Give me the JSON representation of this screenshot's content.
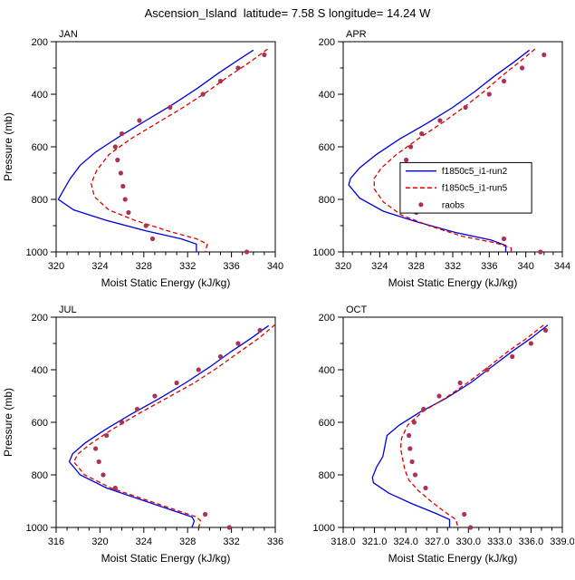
{
  "title": "Ascension_Island  latitude= 7.58 S longitude= 14.24 W",
  "colors": {
    "run2": "#0000dd",
    "run5": "#dd0000",
    "raobs": "#aa3355",
    "axis": "#000000"
  },
  "legend": {
    "entries": [
      {
        "label": "f1850c5_i1-run2",
        "type": "line",
        "color": "#0000dd",
        "dash": "none"
      },
      {
        "label": "f1850c5_i1-run5",
        "type": "line",
        "color": "#dd0000",
        "dash": "5,3"
      },
      {
        "label": "raobs",
        "type": "scatter",
        "color": "#aa3355"
      }
    ]
  },
  "chart_data": [
    {
      "type": "line",
      "title": "JAN",
      "xlabel": "Moist Static Energy (kJ/kg)",
      "ylabel": "Pressure (mb)",
      "xlim": [
        320,
        340
      ],
      "xtick_values": [
        320,
        324,
        328,
        332,
        336,
        340
      ],
      "xtick_labels": [
        "320",
        "324",
        "328",
        "332",
        "336",
        "340"
      ],
      "xminor_step": 1,
      "ylim": [
        200,
        1000
      ],
      "ytick_values": [
        200,
        400,
        600,
        800,
        1000
      ],
      "ytick_labels": [
        "200",
        "400",
        "600",
        "800",
        "1000"
      ],
      "yminor_step": 100,
      "show_legend": false,
      "series": [
        {
          "name": "f1850c5_i1-run2",
          "type": "line",
          "color": "#0000dd",
          "dash": "none",
          "points": [
            [
              338.0,
              232
            ],
            [
              336.6,
              270
            ],
            [
              334.8,
              320
            ],
            [
              332.8,
              380
            ],
            [
              330.6,
              440
            ],
            [
              328.2,
              500
            ],
            [
              325.8,
              560
            ],
            [
              323.6,
              620
            ],
            [
              322.2,
              670
            ],
            [
              321.3,
              720
            ],
            [
              320.6,
              770
            ],
            [
              320.2,
              800
            ],
            [
              321.6,
              840
            ],
            [
              324.6,
              880
            ],
            [
              328.2,
              920
            ],
            [
              331.4,
              950
            ],
            [
              332.8,
              970
            ],
            [
              332.8,
              1000
            ]
          ]
        },
        {
          "name": "f1850c5_i1-run5",
          "type": "line",
          "color": "#dd0000",
          "dash": "5,3",
          "points": [
            [
              339.3,
              228
            ],
            [
              337.6,
              280
            ],
            [
              335.8,
              330
            ],
            [
              333.8,
              390
            ],
            [
              331.6,
              450
            ],
            [
              329.2,
              510
            ],
            [
              326.8,
              570
            ],
            [
              324.8,
              630
            ],
            [
              323.7,
              690
            ],
            [
              323.2,
              740
            ],
            [
              323.5,
              790
            ],
            [
              324.8,
              840
            ],
            [
              327.2,
              880
            ],
            [
              330.2,
              920
            ],
            [
              332.8,
              950
            ],
            [
              333.8,
              970
            ],
            [
              333.6,
              1000
            ]
          ]
        },
        {
          "name": "raobs",
          "type": "scatter",
          "color": "#aa3355",
          "points": [
            [
              339.0,
              250
            ],
            [
              336.6,
              300
            ],
            [
              335.0,
              350
            ],
            [
              333.4,
              400
            ],
            [
              330.4,
              450
            ],
            [
              327.6,
              500
            ],
            [
              326.0,
              550
            ],
            [
              325.4,
              600
            ],
            [
              325.6,
              650
            ],
            [
              325.9,
              700
            ],
            [
              326.1,
              750
            ],
            [
              326.3,
              800
            ],
            [
              326.6,
              850
            ],
            [
              328.2,
              900
            ],
            [
              328.8,
              950
            ],
            [
              337.4,
              1000
            ]
          ]
        }
      ]
    },
    {
      "type": "line",
      "title": "APR",
      "xlabel": "Moist Static Energy (kJ/kg)",
      "ylabel": "",
      "xlim": [
        320,
        344
      ],
      "xtick_values": [
        320,
        324,
        328,
        332,
        336,
        340,
        344
      ],
      "xtick_labels": [
        "320",
        "324",
        "328",
        "332",
        "336",
        "340",
        "344"
      ],
      "xminor_step": 1,
      "ylim": [
        200,
        1000
      ],
      "ytick_values": [
        200,
        400,
        600,
        800,
        1000
      ],
      "ytick_labels": [
        "200",
        "400",
        "600",
        "800",
        "1000"
      ],
      "yminor_step": 100,
      "show_legend": true,
      "series": [
        {
          "name": "f1850c5_i1-run2",
          "type": "line",
          "color": "#0000dd",
          "dash": "none",
          "points": [
            [
              340.4,
              232
            ],
            [
              338.6,
              280
            ],
            [
              336.6,
              330
            ],
            [
              334.4,
              390
            ],
            [
              332.0,
              450
            ],
            [
              329.2,
              510
            ],
            [
              326.2,
              570
            ],
            [
              323.6,
              630
            ],
            [
              321.8,
              680
            ],
            [
              320.8,
              720
            ],
            [
              320.6,
              745
            ],
            [
              321.8,
              795
            ],
            [
              324.4,
              845
            ],
            [
              328.0,
              885
            ],
            [
              332.2,
              925
            ],
            [
              336.2,
              955
            ],
            [
              337.8,
              975
            ],
            [
              337.8,
              1000
            ]
          ]
        },
        {
          "name": "f1850c5_i1-run5",
          "type": "line",
          "color": "#dd0000",
          "dash": "5,3",
          "points": [
            [
              341.0,
              228
            ],
            [
              339.2,
              280
            ],
            [
              337.4,
              330
            ],
            [
              335.4,
              390
            ],
            [
              333.2,
              450
            ],
            [
              330.8,
              510
            ],
            [
              328.2,
              570
            ],
            [
              325.8,
              630
            ],
            [
              324.2,
              680
            ],
            [
              323.4,
              720
            ],
            [
              323.4,
              760
            ],
            [
              324.4,
              810
            ],
            [
              326.4,
              860
            ],
            [
              329.4,
              900
            ],
            [
              333.0,
              940
            ],
            [
              336.6,
              965
            ],
            [
              338.4,
              985
            ],
            [
              338.4,
              1000
            ]
          ]
        },
        {
          "name": "raobs",
          "type": "scatter",
          "color": "#aa3355",
          "points": [
            [
              342.0,
              250
            ],
            [
              339.6,
              300
            ],
            [
              337.6,
              350
            ],
            [
              336.0,
              400
            ],
            [
              333.4,
              450
            ],
            [
              330.6,
              500
            ],
            [
              328.6,
              550
            ],
            [
              327.4,
              600
            ],
            [
              326.9,
              650
            ],
            [
              327.0,
              700
            ],
            [
              327.2,
              750
            ],
            [
              327.5,
              800
            ],
            [
              328.0,
              850
            ],
            [
              337.6,
              950
            ],
            [
              341.6,
              1000
            ]
          ]
        }
      ]
    },
    {
      "type": "line",
      "title": "JUL",
      "xlabel": "Moist Static Energy (kJ/kg)",
      "ylabel": "Pressure (mb)",
      "xlim": [
        316,
        336
      ],
      "xtick_values": [
        316,
        320,
        324,
        328,
        332,
        336
      ],
      "xtick_labels": [
        "316",
        "320",
        "324",
        "328",
        "332",
        "336"
      ],
      "xminor_step": 1,
      "ylim": [
        200,
        1000
      ],
      "ytick_values": [
        200,
        400,
        600,
        800,
        1000
      ],
      "ytick_labels": [
        "200",
        "400",
        "600",
        "800",
        "1000"
      ],
      "yminor_step": 100,
      "show_legend": false,
      "series": [
        {
          "name": "f1850c5_i1-run2",
          "type": "line",
          "color": "#0000dd",
          "dash": "none",
          "points": [
            [
              335.4,
              232
            ],
            [
              333.8,
              280
            ],
            [
              332.0,
              330
            ],
            [
              330.0,
              390
            ],
            [
              327.8,
              450
            ],
            [
              325.4,
              510
            ],
            [
              322.8,
              570
            ],
            [
              320.4,
              630
            ],
            [
              318.6,
              680
            ],
            [
              317.5,
              720
            ],
            [
              317.2,
              750
            ],
            [
              318.2,
              800
            ],
            [
              320.6,
              850
            ],
            [
              323.8,
              895
            ],
            [
              326.6,
              935
            ],
            [
              328.4,
              960
            ],
            [
              328.6,
              975
            ],
            [
              328.4,
              1000
            ]
          ]
        },
        {
          "name": "f1850c5_i1-run5",
          "type": "line",
          "color": "#dd0000",
          "dash": "5,3",
          "points": [
            [
              336.0,
              228
            ],
            [
              334.5,
              280
            ],
            [
              332.8,
              330
            ],
            [
              330.8,
              390
            ],
            [
              328.6,
              450
            ],
            [
              326.0,
              510
            ],
            [
              323.4,
              570
            ],
            [
              321.0,
              630
            ],
            [
              319.2,
              680
            ],
            [
              318.0,
              720
            ],
            [
              317.6,
              750
            ],
            [
              318.6,
              800
            ],
            [
              321.0,
              850
            ],
            [
              324.2,
              895
            ],
            [
              327.0,
              935
            ],
            [
              328.8,
              960
            ],
            [
              329.2,
              975
            ],
            [
              329.0,
              1000
            ]
          ]
        },
        {
          "name": "raobs",
          "type": "scatter",
          "color": "#aa3355",
          "points": [
            [
              334.6,
              250
            ],
            [
              332.6,
              300
            ],
            [
              331.0,
              350
            ],
            [
              329.0,
              400
            ],
            [
              327.0,
              450
            ],
            [
              325.0,
              500
            ],
            [
              323.4,
              550
            ],
            [
              322.0,
              600
            ],
            [
              320.6,
              650
            ],
            [
              319.6,
              700
            ],
            [
              319.9,
              750
            ],
            [
              320.3,
              800
            ],
            [
              321.4,
              850
            ],
            [
              329.6,
              950
            ],
            [
              331.8,
              1000
            ]
          ]
        }
      ]
    },
    {
      "type": "line",
      "title": "OCT",
      "xlabel": "Moist Static Energy (kJ/kg)",
      "ylabel": "",
      "xlim": [
        318,
        339
      ],
      "xtick_values": [
        318,
        321,
        324,
        327,
        330,
        333,
        336,
        339
      ],
      "xtick_labels": [
        "318.0",
        "321.0",
        "324.0",
        "327.0",
        "330.0",
        "333.0",
        "336.0",
        "339.0"
      ],
      "xminor_step": 1,
      "ylim": [
        200,
        1000
      ],
      "ytick_values": [
        200,
        400,
        600,
        800,
        1000
      ],
      "ytick_labels": [
        "200",
        "400",
        "600",
        "800",
        "1000"
      ],
      "yminor_step": 100,
      "show_legend": false,
      "series": [
        {
          "name": "f1850c5_i1-run2",
          "type": "line",
          "color": "#0000dd",
          "dash": "none",
          "points": [
            [
              337.6,
              230
            ],
            [
              336.0,
              280
            ],
            [
              334.2,
              330
            ],
            [
              332.2,
              390
            ],
            [
              330.2,
              450
            ],
            [
              327.8,
              510
            ],
            [
              325.4,
              560
            ],
            [
              323.4,
              610
            ],
            [
              322.2,
              650
            ],
            [
              322.0,
              690
            ],
            [
              321.8,
              730
            ],
            [
              321.2,
              770
            ],
            [
              320.8,
              810
            ],
            [
              320.9,
              830
            ],
            [
              322.4,
              870
            ],
            [
              324.6,
              910
            ],
            [
              326.8,
              945
            ],
            [
              328.2,
              970
            ],
            [
              328.2,
              1000
            ]
          ]
        },
        {
          "name": "f1850c5_i1-run5",
          "type": "line",
          "color": "#dd0000",
          "dash": "5,3",
          "points": [
            [
              337.2,
              230
            ],
            [
              335.6,
              280
            ],
            [
              333.8,
              330
            ],
            [
              331.9,
              390
            ],
            [
              329.9,
              450
            ],
            [
              327.7,
              510
            ],
            [
              325.6,
              560
            ],
            [
              324.2,
              610
            ],
            [
              323.6,
              660
            ],
            [
              323.5,
              700
            ],
            [
              323.7,
              740
            ],
            [
              323.9,
              780
            ],
            [
              324.3,
              820
            ],
            [
              325.2,
              860
            ],
            [
              326.4,
              900
            ],
            [
              327.7,
              940
            ],
            [
              328.8,
              970
            ],
            [
              329.0,
              1000
            ]
          ]
        },
        {
          "name": "raobs",
          "type": "scatter",
          "color": "#aa3355",
          "points": [
            [
              337.4,
              250
            ],
            [
              336.0,
              300
            ],
            [
              334.2,
              350
            ],
            [
              331.8,
              400
            ],
            [
              329.2,
              450
            ],
            [
              327.2,
              500
            ],
            [
              325.7,
              550
            ],
            [
              324.8,
              600
            ],
            [
              324.3,
              650
            ],
            [
              324.4,
              700
            ],
            [
              324.6,
              750
            ],
            [
              324.9,
              800
            ],
            [
              325.9,
              850
            ],
            [
              329.6,
              950
            ],
            [
              330.2,
              1000
            ]
          ]
        }
      ]
    }
  ]
}
